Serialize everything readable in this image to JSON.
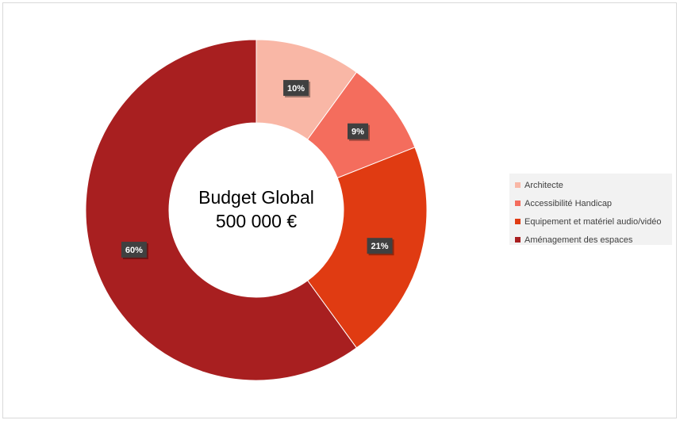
{
  "center_label": {
    "line1": "Budget Global",
    "line2": "500 000 €"
  },
  "chart_data": {
    "type": "pie",
    "variant": "doughnut",
    "categories": [
      "Architecte",
      "Accessibilité Handicap",
      "Equipement et matériel audio/vidéo",
      "Aménagement des espaces"
    ],
    "values": [
      10,
      9,
      21,
      60
    ],
    "data_labels": [
      "10%",
      "9%",
      "21%",
      "60%"
    ],
    "colors": [
      "#f9b7a6",
      "#f46d5d",
      "#e03b12",
      "#a81f20"
    ],
    "legend_position": "right"
  }
}
